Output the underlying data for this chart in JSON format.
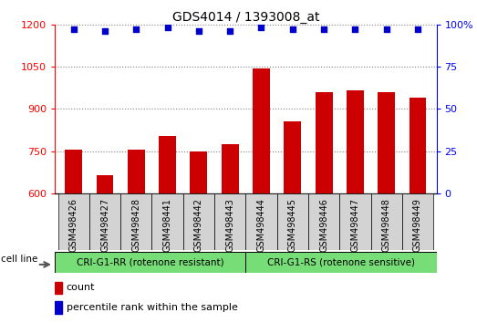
{
  "title": "GDS4014 / 1393008_at",
  "samples": [
    "GSM498426",
    "GSM498427",
    "GSM498428",
    "GSM498441",
    "GSM498442",
    "GSM498443",
    "GSM498444",
    "GSM498445",
    "GSM498446",
    "GSM498447",
    "GSM498448",
    "GSM498449"
  ],
  "counts": [
    755,
    665,
    755,
    805,
    750,
    775,
    1045,
    855,
    960,
    965,
    960,
    940
  ],
  "percentile_ranks": [
    97,
    96,
    97,
    98,
    96,
    96,
    98,
    97,
    97,
    97,
    97,
    97
  ],
  "group1_label": "CRI-G1-RR (rotenone resistant)",
  "group2_label": "CRI-G1-RS (rotenone sensitive)",
  "group1_count": 6,
  "group2_count": 6,
  "ylim_left": [
    600,
    1200
  ],
  "yticks_left": [
    600,
    750,
    900,
    1050,
    1200
  ],
  "ylim_right": [
    0,
    100
  ],
  "yticks_right": [
    0,
    25,
    50,
    75,
    100
  ],
  "bar_color": "#cc0000",
  "dot_color": "#0000cc",
  "bar_width": 0.55,
  "ticklabel_bg": "#d3d3d3",
  "group_bg": "#77dd77",
  "legend_count_label": "count",
  "legend_pct_label": "percentile rank within the sample",
  "cell_line_label": "cell line",
  "right_tick_labels": [
    "0",
    "25",
    "50",
    "75",
    "100%"
  ]
}
